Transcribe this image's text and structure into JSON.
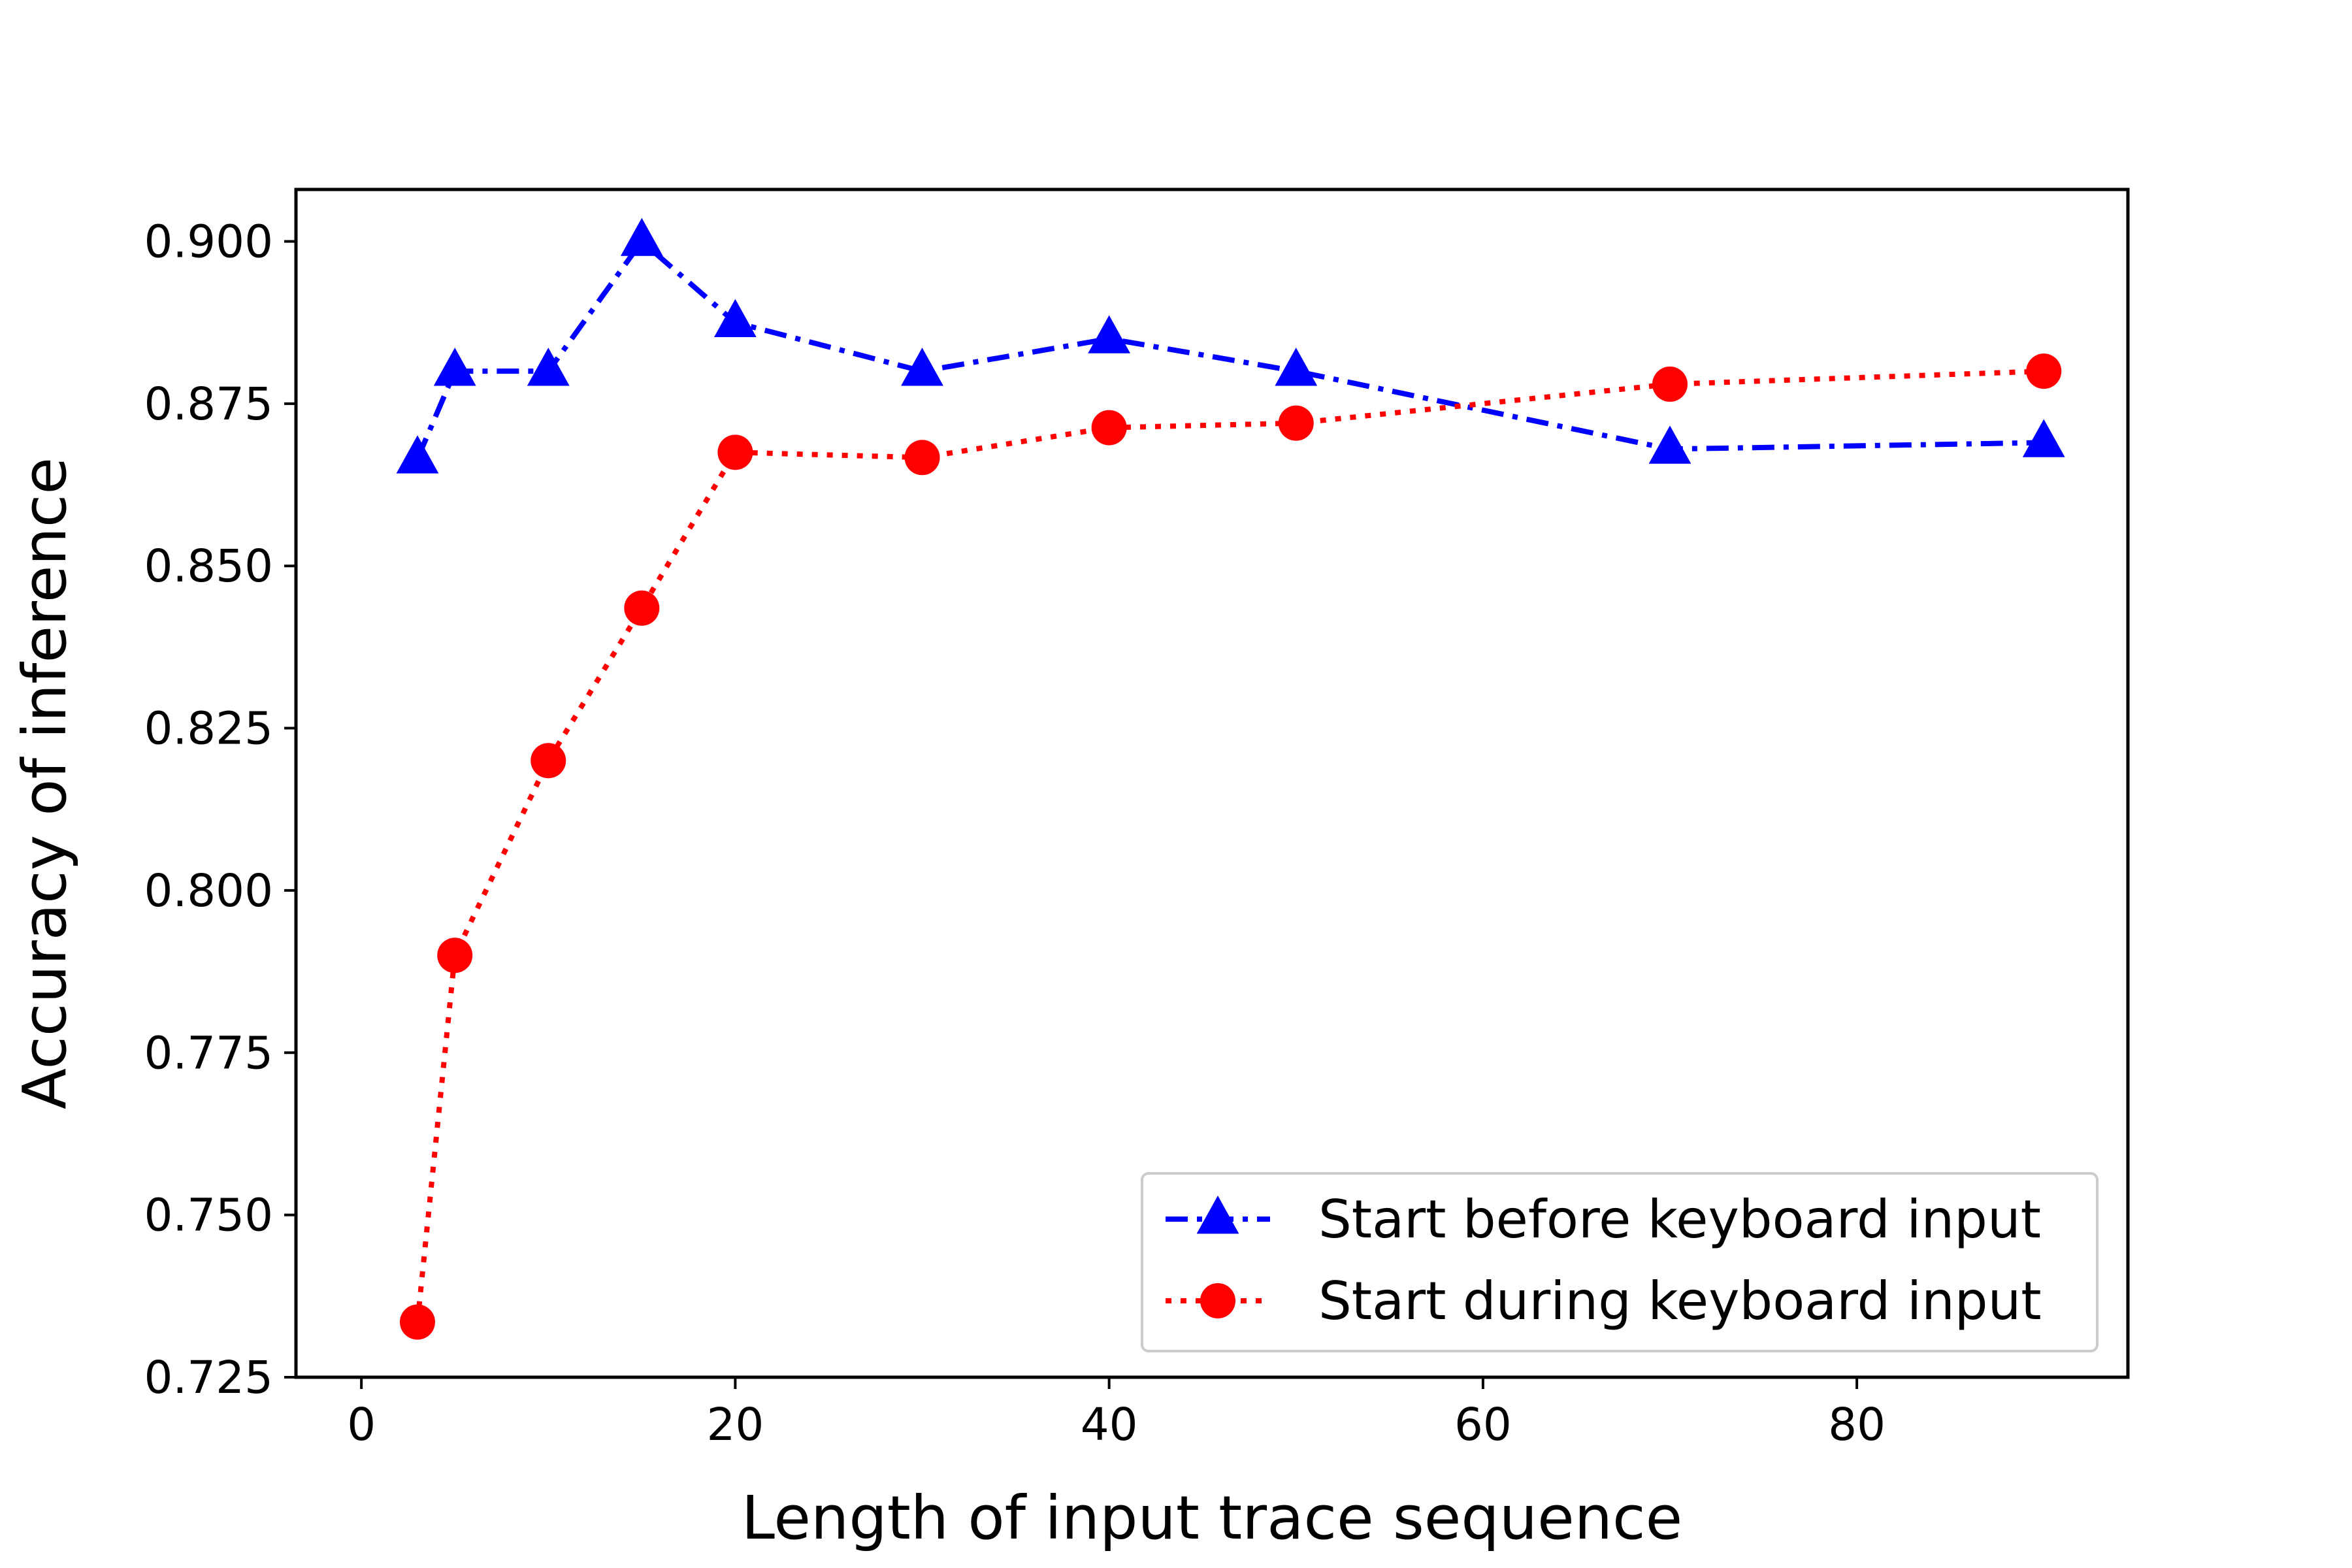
{
  "chart_data": {
    "type": "line",
    "title": "",
    "xlabel": "Length of input trace sequence",
    "ylabel": "Accuracy of inference",
    "xlim": [
      -3.5,
      94.5
    ],
    "ylim": [
      0.725,
      0.908
    ],
    "xticks": [
      0,
      20,
      40,
      60,
      80
    ],
    "xtick_labels": [
      "0",
      "20",
      "40",
      "60",
      "80"
    ],
    "yticks": [
      0.725,
      0.75,
      0.775,
      0.8,
      0.825,
      0.85,
      0.875,
      0.9
    ],
    "ytick_labels": [
      "0.725",
      "0.750",
      "0.775",
      "0.800",
      "0.825",
      "0.850",
      "0.875",
      "0.900"
    ],
    "grid": false,
    "legend_position": "bottom-right",
    "series": [
      {
        "name": "Start before keyboard input",
        "color": "#0000ff",
        "line_style": "dash-dot",
        "marker": "triangle",
        "x": [
          3,
          5,
          10,
          15,
          20,
          30,
          40,
          50,
          70,
          90
        ],
        "y": [
          0.8665,
          0.88,
          0.88,
          0.9,
          0.8875,
          0.88,
          0.885,
          0.88,
          0.868,
          0.869
        ]
      },
      {
        "name": "Start during keyboard input",
        "color": "#ff0000",
        "line_style": "dotted",
        "marker": "circle",
        "x": [
          3,
          5,
          10,
          15,
          20,
          30,
          40,
          50,
          70,
          90
        ],
        "y": [
          0.7335,
          0.79,
          0.82,
          0.8435,
          0.8675,
          0.8667,
          0.8713,
          0.872,
          0.878,
          0.88
        ]
      }
    ]
  }
}
